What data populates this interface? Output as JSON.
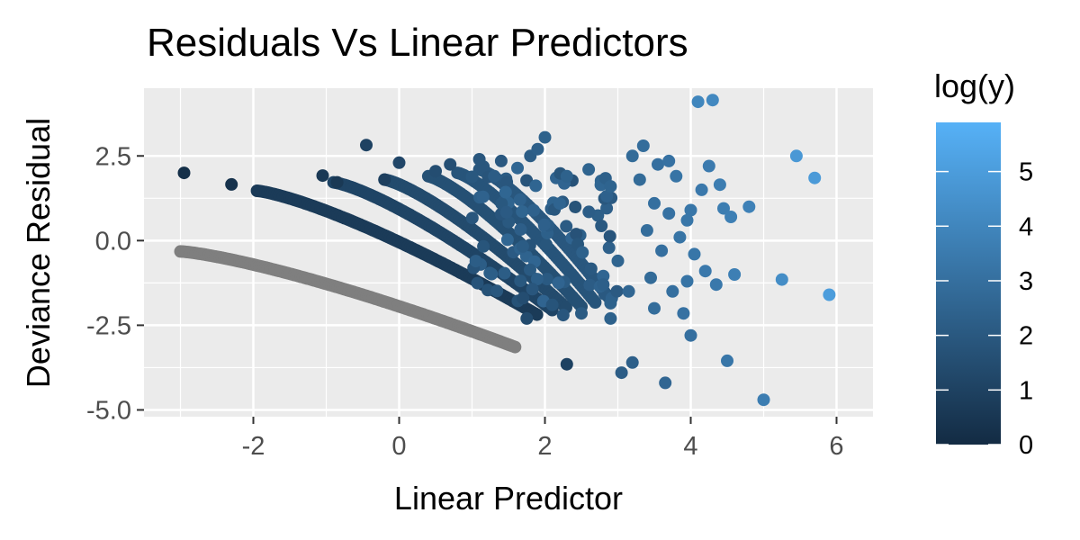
{
  "chart_data": {
    "type": "scatter",
    "title": "Residuals Vs Linear Predictors",
    "xlabel": "Linear Predictor",
    "ylabel": "Deviance Residual",
    "xlim": [
      -3.5,
      6.5
    ],
    "ylim": [
      -5.2,
      4.5
    ],
    "x_ticks": [
      -2,
      0,
      2,
      4,
      6
    ],
    "x_tick_labels": [
      "-2",
      "0",
      "2",
      "4",
      "6"
    ],
    "y_ticks": [
      2.5,
      0,
      -2.5,
      -5
    ],
    "y_tick_labels": [
      "2.5",
      "0.0",
      "-2.5",
      "-5.0"
    ],
    "grid": true,
    "panel_background": "#ebebeb",
    "color_scale": {
      "title": "log(y)",
      "min": 0,
      "max": 5.9,
      "low_color": "#132b43",
      "high_color": "#56b1f7",
      "na_color": "#7f7f7f",
      "ticks": [
        0,
        1,
        2,
        3,
        4,
        5
      ],
      "tick_labels": [
        "0",
        "1",
        "2",
        "3",
        "4",
        "5"
      ],
      "position": "right"
    },
    "gray_band": {
      "log_y": null,
      "x_range": [
        -3.0,
        1.6
      ],
      "y_at_start": -0.32,
      "y_at_end": -3.15
    },
    "bands": [
      {
        "log_y": 0.69,
        "x_range": [
          -1.95,
          1.9
        ],
        "y_at_start": 1.47,
        "y_at_end": -2.2
      },
      {
        "log_y": 1.1,
        "x_range": [
          -0.9,
          2.1
        ],
        "y_at_start": 1.72,
        "y_at_end": -2.05
      },
      {
        "log_y": 1.39,
        "x_range": [
          -0.2,
          2.3
        ],
        "y_at_start": 1.8,
        "y_at_end": -2.0
      },
      {
        "log_y": 1.61,
        "x_range": [
          0.4,
          2.5
        ],
        "y_at_start": 1.9,
        "y_at_end": -1.95
      },
      {
        "log_y": 1.79,
        "x_range": [
          0.8,
          2.7
        ],
        "y_at_start": 2.0,
        "y_at_end": -1.85
      },
      {
        "log_y": 1.95,
        "x_range": [
          1.1,
          2.9
        ],
        "y_at_start": 2.1,
        "y_at_end": -1.75
      }
    ],
    "cluster": {
      "x_range": [
        1.0,
        3.0
      ],
      "y_range": [
        -1.8,
        2.2
      ],
      "log_y_range": [
        1.7,
        2.6
      ],
      "count": 90
    },
    "points": [
      {
        "x": -2.95,
        "y": 2.0,
        "c": 0.2
      },
      {
        "x": -2.3,
        "y": 1.66,
        "c": 0.3
      },
      {
        "x": -1.05,
        "y": 1.92,
        "c": 0.6
      },
      {
        "x": -0.85,
        "y": 1.72,
        "c": 0.6
      },
      {
        "x": -0.45,
        "y": 2.82,
        "c": 1.0
      },
      {
        "x": -0.2,
        "y": 1.8,
        "c": 0.9
      },
      {
        "x": 0.0,
        "y": 2.3,
        "c": 1.2
      },
      {
        "x": 0.5,
        "y": 2.05,
        "c": 1.5
      },
      {
        "x": 0.7,
        "y": 2.25,
        "c": 1.6
      },
      {
        "x": 1.1,
        "y": 2.4,
        "c": 1.9
      },
      {
        "x": 1.4,
        "y": 2.35,
        "c": 2.0
      },
      {
        "x": 1.8,
        "y": 2.5,
        "c": 2.2
      },
      {
        "x": 1.9,
        "y": 2.7,
        "c": 2.3
      },
      {
        "x": 2.0,
        "y": 3.05,
        "c": 2.4
      },
      {
        "x": 2.3,
        "y": 1.9,
        "c": 2.4
      },
      {
        "x": 2.6,
        "y": 2.1,
        "c": 2.5
      },
      {
        "x": 2.9,
        "y": 1.6,
        "c": 2.5
      },
      {
        "x": 1.7,
        "y": -1.7,
        "c": 1.5
      },
      {
        "x": 1.75,
        "y": -2.3,
        "c": 1.4
      },
      {
        "x": 2.1,
        "y": -1.9,
        "c": 1.8
      },
      {
        "x": 2.25,
        "y": -2.2,
        "c": 1.9
      },
      {
        "x": 2.5,
        "y": -2.15,
        "c": 2.1
      },
      {
        "x": 2.3,
        "y": -3.65,
        "c": 1.0
      },
      {
        "x": 2.8,
        "y": -1.3,
        "c": 2.3
      },
      {
        "x": 2.9,
        "y": -1.85,
        "c": 2.4
      },
      {
        "x": 2.9,
        "y": -2.3,
        "c": 2.4
      },
      {
        "x": 3.0,
        "y": -0.6,
        "c": 2.5
      },
      {
        "x": 3.05,
        "y": -3.9,
        "c": 2.2
      },
      {
        "x": 3.15,
        "y": -1.5,
        "c": 2.6
      },
      {
        "x": 3.2,
        "y": -3.6,
        "c": 2.3
      },
      {
        "x": 3.2,
        "y": 2.5,
        "c": 2.8
      },
      {
        "x": 3.3,
        "y": 1.8,
        "c": 2.8
      },
      {
        "x": 3.35,
        "y": 2.8,
        "c": 2.9
      },
      {
        "x": 3.4,
        "y": 0.3,
        "c": 2.9
      },
      {
        "x": 3.45,
        "y": -1.1,
        "c": 2.8
      },
      {
        "x": 3.5,
        "y": -2.0,
        "c": 2.9
      },
      {
        "x": 3.5,
        "y": 1.1,
        "c": 3.0
      },
      {
        "x": 3.55,
        "y": 2.25,
        "c": 3.0
      },
      {
        "x": 3.6,
        "y": -0.3,
        "c": 3.0
      },
      {
        "x": 3.65,
        "y": -4.2,
        "c": 2.6
      },
      {
        "x": 3.7,
        "y": 2.35,
        "c": 3.1
      },
      {
        "x": 3.7,
        "y": 0.8,
        "c": 3.1
      },
      {
        "x": 3.75,
        "y": -1.5,
        "c": 3.0
      },
      {
        "x": 3.8,
        "y": 1.9,
        "c": 3.2
      },
      {
        "x": 3.85,
        "y": 0.1,
        "c": 3.2
      },
      {
        "x": 3.9,
        "y": -2.15,
        "c": 3.1
      },
      {
        "x": 3.95,
        "y": -1.2,
        "c": 3.2
      },
      {
        "x": 3.95,
        "y": 0.6,
        "c": 3.3
      },
      {
        "x": 4.0,
        "y": 0.9,
        "c": 3.3
      },
      {
        "x": 4.0,
        "y": -2.8,
        "c": 3.0
      },
      {
        "x": 4.05,
        "y": -0.4,
        "c": 3.3
      },
      {
        "x": 4.1,
        "y": 4.1,
        "c": 4.0
      },
      {
        "x": 4.15,
        "y": 1.5,
        "c": 3.4
      },
      {
        "x": 4.2,
        "y": -0.9,
        "c": 3.4
      },
      {
        "x": 4.25,
        "y": 2.2,
        "c": 3.5
      },
      {
        "x": 4.3,
        "y": 4.15,
        "c": 4.1
      },
      {
        "x": 4.35,
        "y": -1.3,
        "c": 3.4
      },
      {
        "x": 4.4,
        "y": 1.65,
        "c": 3.6
      },
      {
        "x": 4.45,
        "y": 0.95,
        "c": 3.6
      },
      {
        "x": 4.5,
        "y": -3.55,
        "c": 3.3
      },
      {
        "x": 4.55,
        "y": 0.7,
        "c": 3.7
      },
      {
        "x": 4.6,
        "y": -1.0,
        "c": 3.7
      },
      {
        "x": 4.8,
        "y": 1.0,
        "c": 3.8
      },
      {
        "x": 5.0,
        "y": -4.7,
        "c": 3.6
      },
      {
        "x": 5.25,
        "y": -1.15,
        "c": 4.3
      },
      {
        "x": 5.45,
        "y": 2.5,
        "c": 4.8
      },
      {
        "x": 5.7,
        "y": 1.85,
        "c": 4.9
      },
      {
        "x": 5.9,
        "y": -1.6,
        "c": 5.0
      }
    ]
  }
}
